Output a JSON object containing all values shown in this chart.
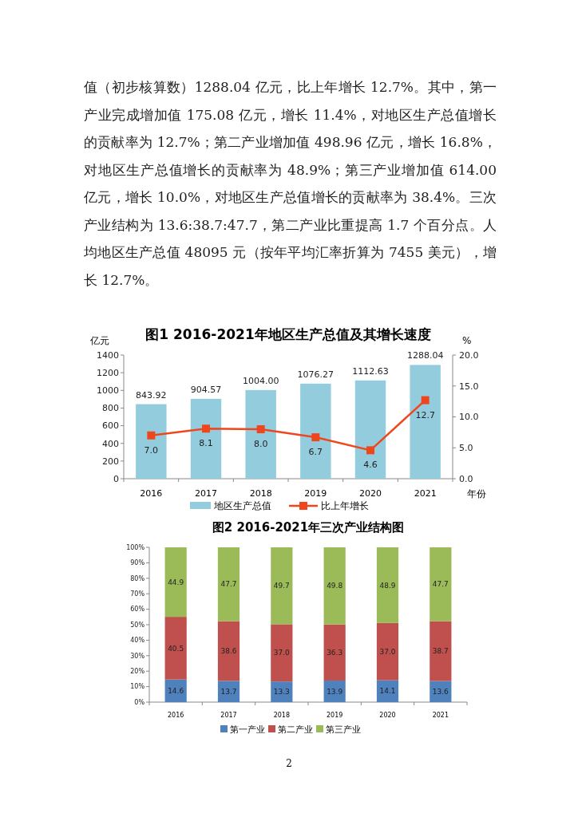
{
  "chart_data": [
    {
      "type": "bar",
      "title": "图1  2016-2021年地区生产总值及其增长速度",
      "ylabel": "亿元",
      "y2label": "%",
      "xlabel": "年份",
      "annotations": [
        "值（初步核算数）1288.04 亿元，比上年增长 12.7%。其中，第一产业完成增加值 175.08 亿元，增长 11.4%，对地区生产总值增长的贡献率为 12.7%；第二产业增加值 498.96 亿元，增长 16.8%，对地区生产总值增长的贡献率为 48.9%；第三产业增加值 614.00 亿元，增长 10.0%，对地区生产总值增长的贡献率为 38.4%。三次产业结构为 13.6:38.7:47.7，第二产业比重提高 1.7 个百分点。人均地区生产总值 48095 元（按年平均汇率折算为 7455 美元），增长 12.7%。"
      ],
      "categories": [
        "2016",
        "2017",
        "2018",
        "2019",
        "2020",
        "2021"
      ],
      "series": [
        {
          "name": "地区生产总值",
          "type": "bar",
          "color": "#93cddd",
          "values": [
            843.92,
            904.57,
            1004.0,
            1076.27,
            1112.63,
            1288.04
          ],
          "value_labels": [
            "843.92",
            "904.57",
            "1004.00",
            "1076.27",
            "1112.63",
            "1288.04"
          ]
        },
        {
          "name": "比上年增长",
          "type": "line",
          "axis": "y2",
          "color": "#f0461e",
          "values": [
            7.0,
            8.1,
            8.0,
            6.7,
            4.6,
            12.7
          ],
          "value_labels": [
            "7.0",
            "8.1",
            "8.0",
            "6.7",
            "4.6",
            "12.7"
          ]
        }
      ],
      "marker": "square",
      "ylim": [
        0,
        1400
      ],
      "yticks": [
        0,
        200,
        400,
        600,
        800,
        1000,
        1200,
        1400
      ],
      "y2lim": [
        0,
        20
      ],
      "y2ticks": [
        {
          "value": 0,
          "label": "0.0"
        },
        {
          "value": 5,
          "label": "5.0"
        },
        {
          "value": 10,
          "label": "10.0"
        },
        {
          "value": 15,
          "label": "15.0"
        },
        {
          "value": 20,
          "label": "20.0"
        }
      ],
      "legend": "bottom"
    },
    {
      "type": "bar",
      "stacked": true,
      "title": "图2  2016-2021年三次产业结构图",
      "annotations": [
        "2"
      ],
      "categories": [
        "2016",
        "2017",
        "2018",
        "2019",
        "2020",
        "2021"
      ],
      "series": [
        {
          "name": "第一产业",
          "color": "#4f81bd",
          "values": [
            14.6,
            13.7,
            13.3,
            13.9,
            14.1,
            13.6
          ],
          "value_labels": [
            "14.6",
            "13.7",
            "13.3",
            "13.9",
            "14.1",
            "13.6"
          ]
        },
        {
          "name": "第二产业",
          "color": "#c0504d",
          "values": [
            40.5,
            38.6,
            37.0,
            36.3,
            37.0,
            38.7
          ],
          "value_labels": [
            "40.5",
            "38.6",
            "37.0",
            "36.3",
            "37.0",
            "38.7"
          ]
        },
        {
          "name": "第三产业",
          "color": "#9bbb59",
          "values": [
            44.9,
            47.7,
            49.7,
            49.8,
            48.9,
            47.7
          ],
          "value_labels": [
            "44.9",
            "47.7",
            "49.7",
            "49.8",
            "48.9",
            "47.7"
          ]
        }
      ],
      "ylim": [
        0,
        100
      ],
      "yticks": [
        {
          "value": 0,
          "label": "0%"
        },
        {
          "value": 10,
          "label": "10%"
        },
        {
          "value": 20,
          "label": "20%"
        },
        {
          "value": 30,
          "label": "30%"
        },
        {
          "value": 40,
          "label": "40%"
        },
        {
          "value": 50,
          "label": "50%"
        },
        {
          "value": 60,
          "label": "60%"
        },
        {
          "value": 70,
          "label": "70%"
        },
        {
          "value": 80,
          "label": "80%"
        },
        {
          "value": 90,
          "label": "90%"
        },
        {
          "value": 100,
          "label": "100%"
        }
      ],
      "legend": "bottom"
    }
  ]
}
